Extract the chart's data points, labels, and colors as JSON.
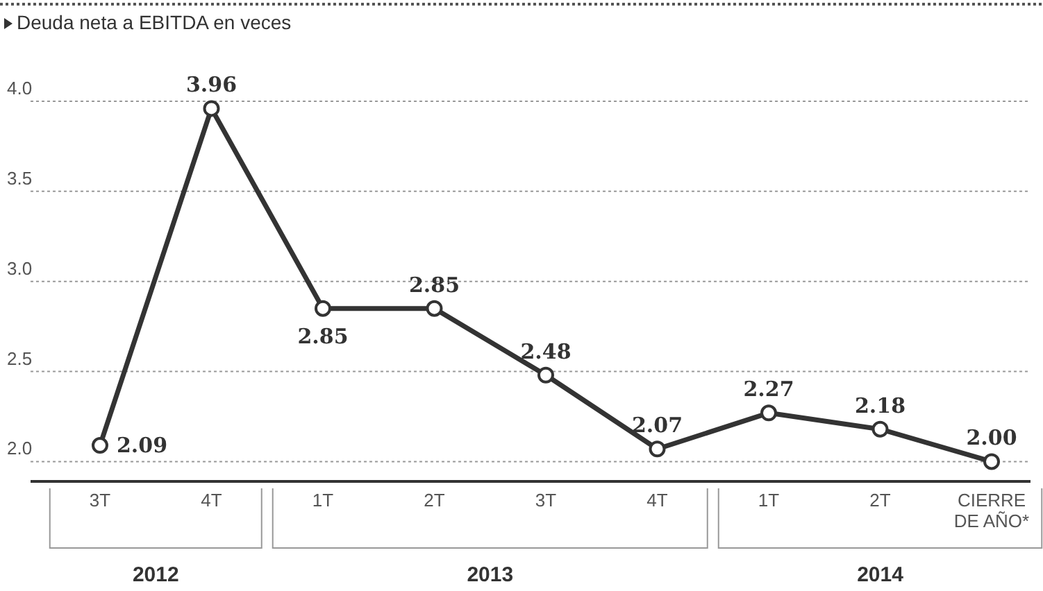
{
  "chart_data": {
    "type": "line",
    "title": "Deuda neta a EBITDA en veces",
    "categories": [
      "3T",
      "4T",
      "1T",
      "2T",
      "3T",
      "4T",
      "1T",
      "2T",
      "CIERRE DE AÑO*"
    ],
    "series": [
      {
        "color": "#333333",
        "values": [
          2.09,
          3.96,
          2.85,
          2.85,
          2.48,
          2.07,
          2.27,
          2.18,
          2.0
        ]
      }
    ],
    "ylim": [
      1.89,
      4.0
    ],
    "yticks": [
      {
        "value": 2.0,
        "label": "2.0"
      },
      2.5,
      {
        "value": 3.0,
        "label": "3.0"
      },
      3.5,
      {
        "value": 4.0,
        "label": "4.0"
      }
    ],
    "grid": "y",
    "marker": "circle",
    "value_labels": [
      "2.09",
      "3.96",
      "2.85",
      "2.85",
      "2.48",
      "2.07",
      "2.27",
      "2.18",
      "2.00"
    ],
    "annotations": [
      "2012",
      "2013",
      "2014"
    ]
  }
}
